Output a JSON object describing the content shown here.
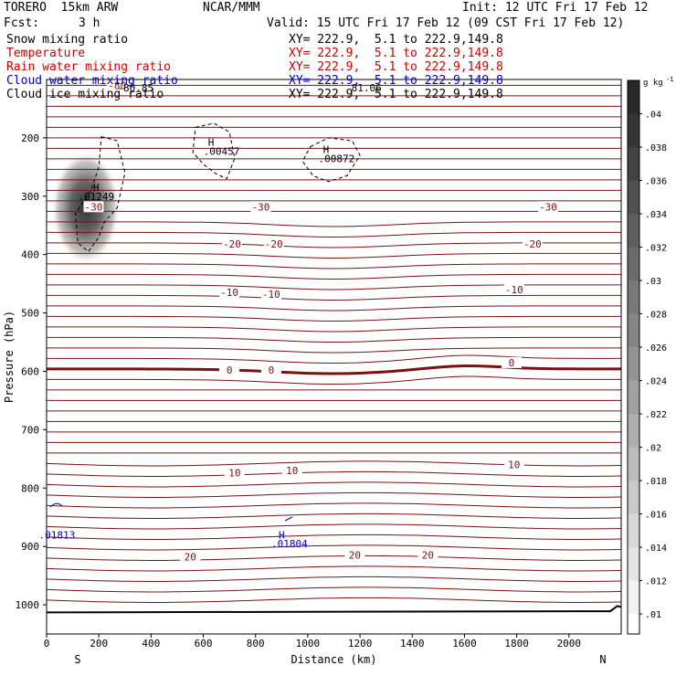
{
  "header": {
    "model": "TORERO  15km ARW",
    "center": "NCAR/MMM",
    "init": "Init: 12 UTC Fri 17 Feb 12",
    "fcst_label": "Fcst:",
    "fcst_value": "3 h",
    "valid": "Valid: 15 UTC Fri 17 Feb 12 (09 CST Fri 17 Feb 12)"
  },
  "legend": [
    {
      "name": "Snow mixing ratio",
      "color": "#000000",
      "xy": "XY= 222.9,  5.1 to 222.9,149.8",
      "xy_color": "#000000"
    },
    {
      "name": "Temperature",
      "color": "#cc0000",
      "xy": "XY= 222.9,  5.1 to 222.9,149.8",
      "xy_color": "#cc0000"
    },
    {
      "name": "Rain water mixing ratio",
      "color": "#cc0000",
      "xy": "XY= 222.9,  5.1 to 222.9,149.8",
      "xy_color": "#cc0000"
    },
    {
      "name": "Cloud water mixing ratio",
      "color": "#0000cc",
      "xy": "XY= 222.9,  5.1 to 222.9,149.8",
      "xy_color": "#0000cc"
    },
    {
      "name": "Cloud ice mixing ratio",
      "color": "#000000",
      "xy": "XY= 222.9,  5.1 to 222.9,149.8",
      "xy_color": "#000000"
    }
  ],
  "chart_data": {
    "type": "contour",
    "ylabel": "Pressure (hPa)",
    "xlabel": "Distance (km)",
    "x_ticks": [
      0,
      200,
      400,
      600,
      800,
      1000,
      1200,
      1400,
      1600,
      1800,
      2000
    ],
    "x_range": [
      0,
      2200
    ],
    "y_ticks": [
      200,
      300,
      400,
      500,
      600,
      700,
      800,
      900,
      1000
    ],
    "y_range": [
      100,
      1050
    ],
    "endpoint_left": "S",
    "endpoint_right": "N",
    "colorbar": {
      "unit": "g kg",
      "unit_exp": "-1",
      "labels": [
        ".04",
        ".038",
        ".036",
        ".034",
        ".032",
        ".03",
        ".028",
        ".026",
        ".024",
        ".022",
        ".02",
        ".018",
        ".016",
        ".014",
        ".012",
        ".01"
      ]
    },
    "temperature_labels": [
      {
        "text": "-80",
        "x": 270,
        "p": 110
      },
      {
        "text": "-30",
        "x": 180,
        "p": 318
      },
      {
        "text": "-30",
        "x": 820,
        "p": 318
      },
      {
        "text": "-30",
        "x": 1920,
        "p": 318
      },
      {
        "text": "-20",
        "x": 710,
        "p": 382
      },
      {
        "text": "-20",
        "x": 870,
        "p": 382
      },
      {
        "text": "-20",
        "x": 1860,
        "p": 382
      },
      {
        "text": "-10",
        "x": 700,
        "p": 465
      },
      {
        "text": "-10",
        "x": 860,
        "p": 468
      },
      {
        "text": "-10",
        "x": 1790,
        "p": 460
      },
      {
        "text": "0",
        "x": 700,
        "p": 598
      },
      {
        "text": "0",
        "x": 860,
        "p": 598
      },
      {
        "text": "0",
        "x": 1780,
        "p": 585
      },
      {
        "text": "10",
        "x": 720,
        "p": 774
      },
      {
        "text": "10",
        "x": 940,
        "p": 770
      },
      {
        "text": "10",
        "x": 1790,
        "p": 760
      },
      {
        "text": "20",
        "x": 550,
        "p": 918
      },
      {
        "text": "20",
        "x": 1180,
        "p": 915
      },
      {
        "text": "20",
        "x": 1460,
        "p": 915
      }
    ],
    "maxima": [
      {
        "text": ".01249",
        "x": 190,
        "p": 300,
        "color": "#000000"
      },
      {
        "text": ".00457",
        "x": 670,
        "p": 223,
        "color": "#000000"
      },
      {
        "text": ".00872",
        "x": 1110,
        "p": 235,
        "color": "#000000"
      },
      {
        "text": "81.06",
        "x": 1225,
        "p": 114,
        "color": "#000000"
      },
      {
        "text": "-80.85",
        "x": 340,
        "p": 114,
        "color": "#000000"
      },
      {
        "text": ".01813",
        "x": 40,
        "p": 880,
        "color": "#0000cc"
      },
      {
        "text": ".01804",
        "x": 930,
        "p": 895,
        "color": "#0000cc"
      }
    ],
    "h_marks": [
      {
        "text": "H",
        "x": 190,
        "p": 285,
        "color": "#000000"
      },
      {
        "text": "H",
        "x": 630,
        "p": 207,
        "color": "#000000"
      },
      {
        "text": "H",
        "x": 1070,
        "p": 220,
        "color": "#000000"
      },
      {
        "text": "H",
        "x": 900,
        "p": 880,
        "color": "#0000cc"
      }
    ]
  }
}
